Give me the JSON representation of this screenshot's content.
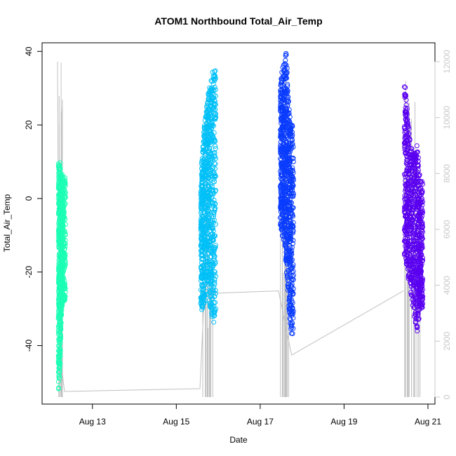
{
  "chart_data": {
    "type": "scatter",
    "title": "ATOM1 Northbound Total_Air_Temp",
    "xlabel": "Date",
    "ylabel": "Total_Air_Temp",
    "x_axis": {
      "type": "date",
      "range": [
        "2022-08-12",
        "2022-08-21"
      ],
      "ticks": [
        {
          "date": "2022-08-13",
          "label": "Aug 13"
        },
        {
          "date": "2022-08-15",
          "label": "Aug 15"
        },
        {
          "date": "2022-08-17",
          "label": "Aug 17"
        },
        {
          "date": "2022-08-19",
          "label": "Aug 19"
        },
        {
          "date": "2022-08-21",
          "label": "Aug 21"
        }
      ]
    },
    "y_axis_left": {
      "range": [
        -54,
        41
      ],
      "ticks": [
        -40,
        -20,
        0,
        20,
        40
      ],
      "tick_labels": [
        "-40",
        "-20",
        "0",
        "20",
        "40"
      ]
    },
    "y_axis_right": {
      "range": [
        0,
        12500
      ],
      "ticks": [
        0,
        2000,
        4000,
        6000,
        8000,
        10000,
        12000
      ],
      "tick_labels": [
        "0",
        "2000",
        "4000",
        "6000",
        "8000",
        "10000",
        "12000"
      ],
      "color": "#c8c8c8"
    },
    "series": [
      {
        "color": "#1cffb4",
        "points": [
          {
            "x": "2022-08-12T04:30",
            "y_min": -53,
            "y_max": 10
          },
          {
            "x": "2022-08-12T05:00",
            "y_min": -50,
            "y_max": 9
          },
          {
            "x": "2022-08-12T05:30",
            "y_min": -45,
            "y_max": 10
          },
          {
            "x": "2022-08-12T06:00",
            "y_min": -35,
            "y_max": 8
          },
          {
            "x": "2022-08-12T06:30",
            "y_min": -30,
            "y_max": 7
          },
          {
            "x": "2022-08-12T07:00",
            "y_min": -28,
            "y_max": 6
          }
        ]
      },
      {
        "color": "#00c0f8",
        "points": [
          {
            "x": "2022-08-15T14:00",
            "y_min": -32,
            "y_max": 6
          },
          {
            "x": "2022-08-15T15:00",
            "y_min": -30,
            "y_max": 14
          },
          {
            "x": "2022-08-15T16:30",
            "y_min": -28,
            "y_max": 22
          },
          {
            "x": "2022-08-15T18:00",
            "y_min": -25,
            "y_max": 28
          },
          {
            "x": "2022-08-15T19:30",
            "y_min": -30,
            "y_max": 32
          },
          {
            "x": "2022-08-15T21:00",
            "y_min": -34,
            "y_max": 35
          }
        ]
      },
      {
        "color": "#0a3cff",
        "points": [
          {
            "x": "2022-08-17T11:30",
            "y_min": -9,
            "y_max": 30
          },
          {
            "x": "2022-08-17T12:30",
            "y_min": -10,
            "y_max": 35
          },
          {
            "x": "2022-08-17T14:00",
            "y_min": -12,
            "y_max": 38
          },
          {
            "x": "2022-08-17T15:00",
            "y_min": -20,
            "y_max": 40
          },
          {
            "x": "2022-08-17T16:30",
            "y_min": -30,
            "y_max": 25
          },
          {
            "x": "2022-08-17T17:30",
            "y_min": -37,
            "y_max": 20
          }
        ]
      },
      {
        "color": "#5a00f0",
        "points": [
          {
            "x": "2022-08-20T10:30",
            "y_min": -15,
            "y_max": 33
          },
          {
            "x": "2022-08-20T12:00",
            "y_min": -20,
            "y_max": 25
          },
          {
            "x": "2022-08-20T14:00",
            "y_min": -25,
            "y_max": 15
          },
          {
            "x": "2022-08-20T16:00",
            "y_min": -32,
            "y_max": 12
          },
          {
            "x": "2022-08-20T18:00",
            "y_min": -37,
            "y_max": 15
          },
          {
            "x": "2022-08-20T19:30",
            "y_min": -30,
            "y_max": 5
          }
        ]
      }
    ],
    "secondary_line": {
      "color": "#c0c0c0",
      "axis": "right",
      "points": [
        {
          "x": "2022-08-12T04:00",
          "y": 12000
        },
        {
          "x": "2022-08-12T04:30",
          "y": 6000
        },
        {
          "x": "2022-08-12T05:30",
          "y": 3500
        },
        {
          "x": "2022-08-12T06:30",
          "y": 1000
        },
        {
          "x": "2022-08-12T08:00",
          "y": 200
        },
        {
          "x": "2022-08-15T13:30",
          "y": 300
        },
        {
          "x": "2022-08-15T16:00",
          "y": 3700
        },
        {
          "x": "2022-08-17T10:30",
          "y": 3800
        },
        {
          "x": "2022-08-17T18:00",
          "y": 1500
        },
        {
          "x": "2022-08-20T10:00",
          "y": 3800
        }
      ]
    },
    "grid": false,
    "legend": "none"
  }
}
